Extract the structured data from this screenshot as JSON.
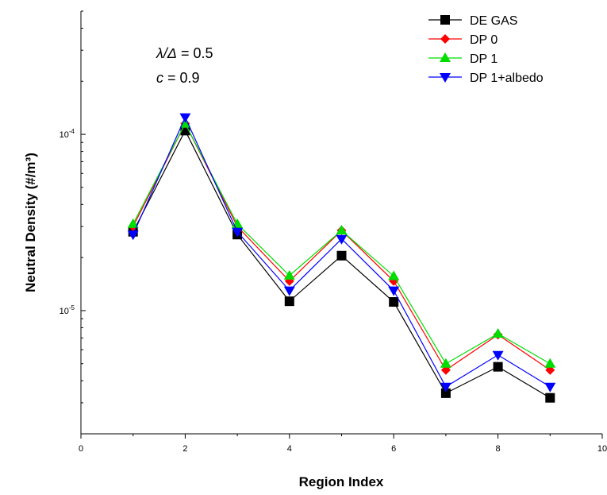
{
  "chart_data": {
    "type": "line",
    "xlabel": "Region Index",
    "ylabel": "Neutral Density (#/m³)",
    "xlim": [
      0,
      10
    ],
    "ylim": [
      2e-06,
      0.0005
    ],
    "y_scale": "log",
    "x_ticks": [
      "0",
      "2",
      "4",
      "6",
      "8",
      "10"
    ],
    "y_tick_labels": [
      {
        "base": "10",
        "exp": "-4",
        "value": 0.0001
      },
      {
        "base": "10",
        "exp": "-5",
        "value": 1e-05
      }
    ],
    "legend_position": "top-right",
    "grid": false,
    "annotations": [
      {
        "symbol": "λ/Δ",
        "text": " = 0.5"
      },
      {
        "symbol": "c",
        "text": " = 0.9"
      }
    ],
    "x": [
      1,
      2,
      3,
      4,
      5,
      6,
      7,
      8,
      9
    ],
    "series": [
      {
        "name": "DE GAS",
        "color": "#000000",
        "marker": "square",
        "values": [
          2.8e-05,
          0.000105,
          2.7e-05,
          1.13e-05,
          2.05e-05,
          1.12e-05,
          3.4e-06,
          4.8e-06,
          3.2e-06
        ]
      },
      {
        "name": "DP 0",
        "color": "#ff0000",
        "marker": "diamond",
        "values": [
          3e-05,
          0.000115,
          3e-05,
          1.47e-05,
          2.85e-05,
          1.47e-05,
          4.6e-06,
          7.3e-06,
          4.6e-06
        ]
      },
      {
        "name": "DP 1",
        "color": "#00dd00",
        "marker": "triangle-up",
        "values": [
          3.1e-05,
          0.000115,
          3.1e-05,
          1.58e-05,
          2.85e-05,
          1.57e-05,
          5e-06,
          7.4e-06,
          5e-06
        ]
      },
      {
        "name": "DP 1+albedo",
        "color": "#0000ff",
        "marker": "triangle-down",
        "values": [
          2.7e-05,
          0.000125,
          2.8e-05,
          1.3e-05,
          2.55e-05,
          1.3e-05,
          3.7e-06,
          5.6e-06,
          3.7e-06
        ]
      }
    ]
  }
}
